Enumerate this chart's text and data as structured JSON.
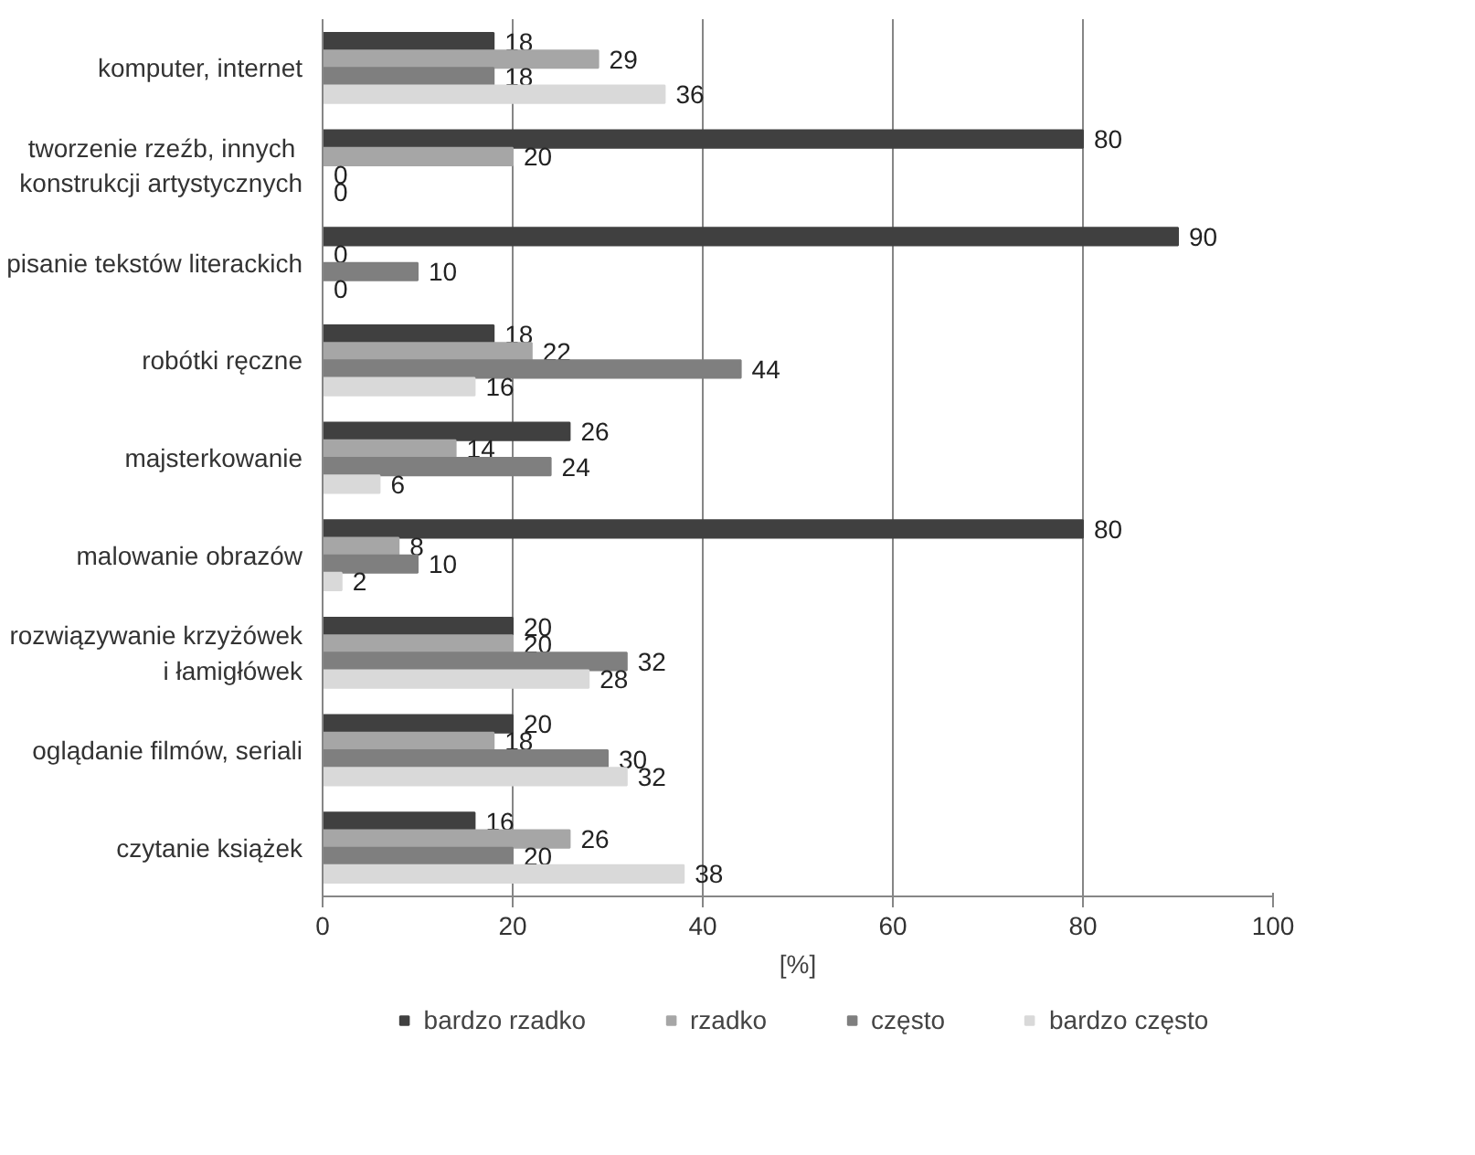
{
  "chart_data": {
    "type": "bar",
    "orientation": "horizontal",
    "xlabel": "[%]",
    "categories": [
      "komputer, internet",
      "tworzenie  rzeźb, innych\nkonstrukcji artystycznych",
      "pisanie tekstów literackich",
      "robótki ręczne",
      "majsterkowanie",
      "malowanie obrazów",
      "rozwiązywanie krzyżówek\ni łamigłówek",
      "oglądanie filmów, seriali",
      "czytanie książek"
    ],
    "series": [
      {
        "name": "bardzo rzadko",
        "color": "#404040",
        "values": [
          18,
          80,
          90,
          18,
          26,
          80,
          20,
          20,
          16
        ]
      },
      {
        "name": "rzadko",
        "color": "#a6a6a6",
        "values": [
          29,
          20,
          0,
          22,
          14,
          8,
          20,
          18,
          26
        ]
      },
      {
        "name": "często",
        "color": "#7f7f7f",
        "values": [
          18,
          0,
          10,
          44,
          24,
          10,
          32,
          30,
          20
        ]
      },
      {
        "name": "bardzo często",
        "color": "#d9d9d9",
        "values": [
          36,
          0,
          0,
          16,
          6,
          2,
          28,
          32,
          38
        ]
      }
    ],
    "xlim": [
      0,
      100
    ],
    "xticks": [
      0,
      20,
      40,
      60,
      80,
      100
    ],
    "grid": "x",
    "legend": "bottom",
    "data_labels": true
  }
}
